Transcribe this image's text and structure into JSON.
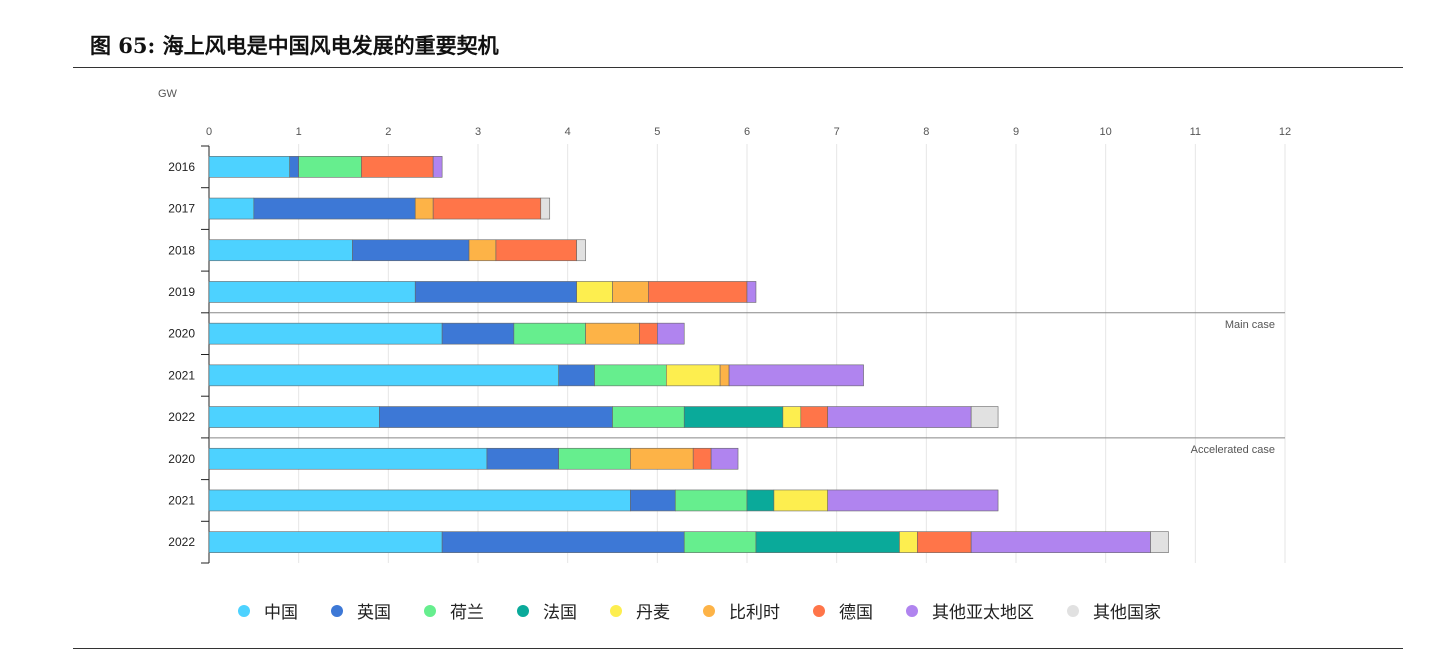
{
  "figure": {
    "title": "图 65: 海上风电是中国风电发展的重要契机"
  },
  "chart_data": {
    "type": "bar",
    "orientation": "horizontal",
    "stacked": true,
    "unit_label": "GW",
    "xlim": [
      0,
      12
    ],
    "x_ticks": [
      "0",
      "1",
      "2",
      "3",
      "4",
      "5",
      "6",
      "7",
      "8",
      "9",
      "10",
      "11",
      "12"
    ],
    "grid": true,
    "categories": [
      "2016",
      "2017",
      "2018",
      "2019",
      "2020",
      "2021",
      "2022",
      "2020",
      "2021",
      "2022"
    ],
    "groups": [
      {
        "label": "",
        "rows": [
          0,
          1,
          2,
          3
        ]
      },
      {
        "label": "Main case",
        "rows": [
          4,
          5,
          6
        ]
      },
      {
        "label": "Accelerated case",
        "rows": [
          7,
          8,
          9
        ]
      }
    ],
    "series": [
      {
        "name": "中国",
        "color": "#4dd2ff",
        "values": [
          0.9,
          0.5,
          1.6,
          2.3,
          2.6,
          3.9,
          1.9,
          3.1,
          4.7,
          2.6
        ]
      },
      {
        "name": "英国",
        "color": "#3d78d6",
        "values": [
          0.1,
          1.8,
          1.3,
          1.8,
          0.8,
          0.4,
          2.6,
          0.8,
          0.5,
          2.7
        ]
      },
      {
        "name": "荷兰",
        "color": "#66ee8e",
        "values": [
          0.7,
          0,
          0,
          0,
          0.8,
          0.8,
          0.8,
          0.8,
          0.8,
          0.8
        ]
      },
      {
        "name": "法国",
        "color": "#0aaa9a",
        "values": [
          0,
          0,
          0,
          0,
          0,
          0,
          1.1,
          0,
          0.3,
          1.6
        ]
      },
      {
        "name": "丹麦",
        "color": "#fdee4f",
        "values": [
          0,
          0,
          0,
          0.4,
          0,
          0.6,
          0.2,
          0,
          0.6,
          0.2
        ]
      },
      {
        "name": "比利时",
        "color": "#fdb347",
        "values": [
          0,
          0.2,
          0.3,
          0.4,
          0.6,
          0.1,
          0,
          0.7,
          0,
          0
        ]
      },
      {
        "name": "德国",
        "color": "#ff7549",
        "values": [
          0.8,
          1.2,
          0.9,
          1.1,
          0.2,
          0,
          0.3,
          0.2,
          0,
          0.6
        ]
      },
      {
        "name": "其他亚太地区",
        "color": "#b084ef",
        "values": [
          0.1,
          0,
          0,
          0.1,
          0.3,
          1.5,
          1.6,
          0.3,
          1.9,
          2.0
        ]
      },
      {
        "name": "其他国家",
        "color": "#e1e1e1",
        "values": [
          0,
          0.1,
          0.1,
          0,
          0,
          0,
          0.3,
          0,
          0,
          0.2
        ]
      }
    ]
  }
}
